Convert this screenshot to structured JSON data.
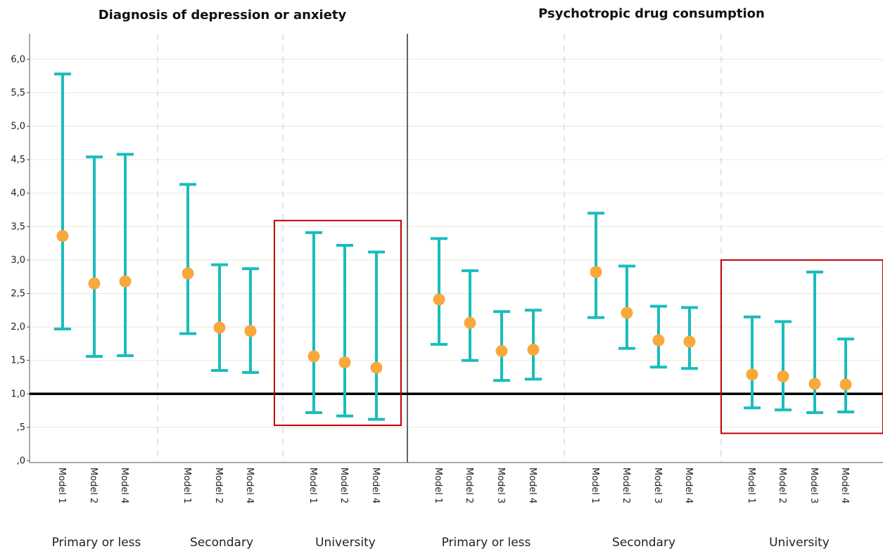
{
  "colors": {
    "errorbar": "#1bbcbc",
    "point": "#f9a83b",
    "reference_line": "#000000",
    "highlight_box": "#c00000",
    "gridline": "#ece8d6",
    "separator": "#c8c8c8"
  },
  "chart_data": [
    {
      "type": "errorbar",
      "title": "Diagnosis of depression or anxiety",
      "ylim": [
        0,
        6.2
      ],
      "yticks": [
        ",0",
        ",5",
        "1,0",
        "1,5",
        "2,0",
        "2,5",
        "3,0",
        "3,5",
        "4,0",
        "4,5",
        "5,0",
        "5,5",
        "6,0"
      ],
      "reference_line": 1.0,
      "grid": true,
      "highlighted_group": "University",
      "groups": [
        {
          "name": "Primary or less",
          "models": [
            {
              "label": "Model 1",
              "estimate": 3.36,
              "lower": 1.97,
              "upper": 5.78
            },
            {
              "label": "Model 2",
              "estimate": 2.65,
              "lower": 1.56,
              "upper": 4.54
            },
            {
              "label": "Model 4",
              "estimate": 2.68,
              "lower": 1.57,
              "upper": 4.58
            }
          ]
        },
        {
          "name": "Secondary",
          "models": [
            {
              "label": "Model 1",
              "estimate": 2.8,
              "lower": 1.9,
              "upper": 4.13
            },
            {
              "label": "Model 2",
              "estimate": 1.99,
              "lower": 1.35,
              "upper": 2.93
            },
            {
              "label": "Model 4",
              "estimate": 1.94,
              "lower": 1.32,
              "upper": 2.87
            }
          ]
        },
        {
          "name": "University",
          "models": [
            {
              "label": "Model 1",
              "estimate": 1.56,
              "lower": 0.72,
              "upper": 3.41
            },
            {
              "label": "Model 2",
              "estimate": 1.47,
              "lower": 0.67,
              "upper": 3.22
            },
            {
              "label": "Model 4",
              "estimate": 1.39,
              "lower": 0.62,
              "upper": 3.12
            }
          ]
        }
      ]
    },
    {
      "type": "errorbar",
      "title": "Psychotropic drug consumption",
      "ylim": [
        0,
        6.2
      ],
      "reference_line": 1.0,
      "grid": true,
      "highlighted_group": "University",
      "groups": [
        {
          "name": "Primary or less",
          "models": [
            {
              "label": "Model 1",
              "estimate": 2.41,
              "lower": 1.74,
              "upper": 3.32
            },
            {
              "label": "Model 2",
              "estimate": 2.06,
              "lower": 1.5,
              "upper": 2.84
            },
            {
              "label": "Model 3",
              "estimate": 1.64,
              "lower": 1.2,
              "upper": 2.23
            },
            {
              "label": "Model 4",
              "estimate": 1.66,
              "lower": 1.22,
              "upper": 2.25
            }
          ]
        },
        {
          "name": "Secondary",
          "models": [
            {
              "label": "Model 1",
              "estimate": 2.82,
              "lower": 2.14,
              "upper": 3.7
            },
            {
              "label": "Model 2",
              "estimate": 2.21,
              "lower": 1.68,
              "upper": 2.91
            },
            {
              "label": "Model 3",
              "estimate": 1.8,
              "lower": 1.4,
              "upper": 2.31
            },
            {
              "label": "Model 4",
              "estimate": 1.78,
              "lower": 1.38,
              "upper": 2.29
            }
          ]
        },
        {
          "name": "University",
          "models": [
            {
              "label": "Model 1",
              "estimate": 1.29,
              "lower": 0.79,
              "upper": 2.15
            },
            {
              "label": "Model 2",
              "estimate": 1.26,
              "lower": 0.76,
              "upper": 2.08
            },
            {
              "label": "Model 3",
              "estimate": 1.15,
              "lower": 0.72,
              "upper": 2.82
            },
            {
              "label": "Model 4",
              "estimate": 1.14,
              "lower": 0.73,
              "upper": 1.82
            }
          ]
        }
      ]
    }
  ]
}
